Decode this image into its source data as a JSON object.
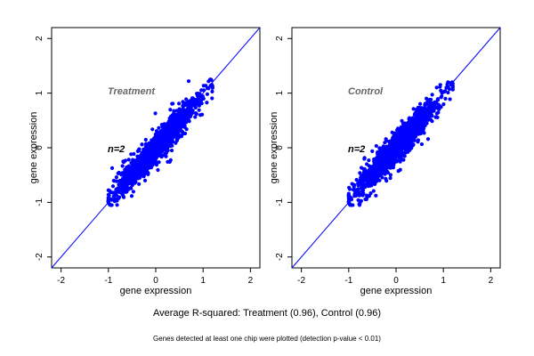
{
  "chart_data": [
    {
      "type": "scatter",
      "annotation_title": "Treatment",
      "annotation_n": "n=2",
      "xlabel": "gene expression",
      "ylabel": "gene expression",
      "xlim": [
        -2.2,
        2.2
      ],
      "ylim": [
        -2.2,
        2.2
      ],
      "xticks": [
        -2,
        -1,
        0,
        1,
        2
      ],
      "yticks": [
        -2,
        -1,
        0,
        1,
        2
      ],
      "point_color": "#0000ff",
      "reference_line": "y = x",
      "point_cloud": {
        "center": [
          0.0,
          0.0
        ],
        "range_x": [
          -1.0,
          1.2
        ],
        "range_y": [
          -1.05,
          1.25
        ],
        "r_squared": 0.96
      }
    },
    {
      "type": "scatter",
      "annotation_title": "Control",
      "annotation_n": "n=2",
      "xlabel": "gene expression",
      "ylabel": "gene expression",
      "xlim": [
        -2.2,
        2.2
      ],
      "ylim": [
        -2.2,
        2.2
      ],
      "xticks": [
        -2,
        -1,
        0,
        1,
        2
      ],
      "yticks": [
        -2,
        -1,
        0,
        1,
        2
      ],
      "point_color": "#0000ff",
      "reference_line": "y = x",
      "point_cloud": {
        "center": [
          0.0,
          0.0
        ],
        "range_x": [
          -1.0,
          1.2
        ],
        "range_y": [
          -1.05,
          1.2
        ],
        "r_squared": 0.96
      }
    }
  ],
  "captions": {
    "main": "Average R-squared: Treatment (0.96), Control (0.96)",
    "footnote": "Genes detected at least one chip were plotted (detection p-value < 0.01)"
  },
  "colors": {
    "points": "#0000ff",
    "reference_line": "#0000ff",
    "annotation_title": "#666666",
    "axes": "#000000"
  }
}
